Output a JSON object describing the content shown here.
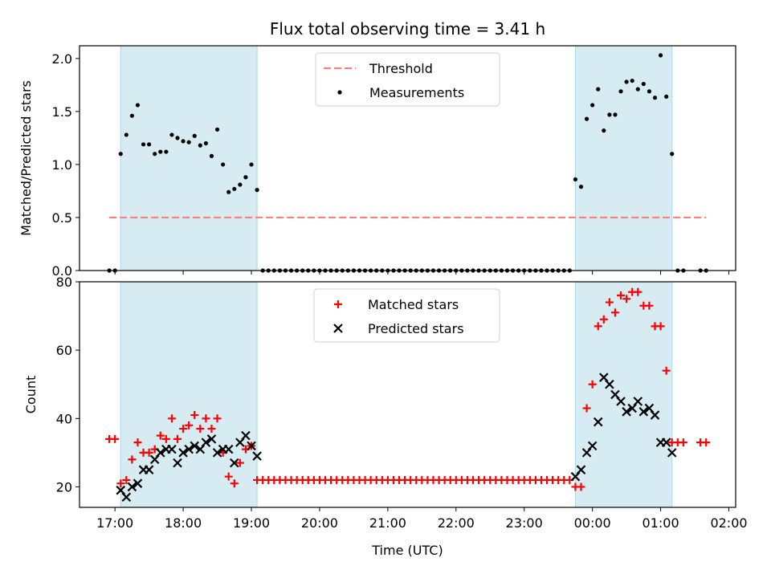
{
  "chart_data": [
    {
      "type": "scatter",
      "title": "Flux total observing time = 3.41 h",
      "ylabel": "Matched/Predicted stars",
      "xlabel": "",
      "ylim": [
        0,
        2.12
      ],
      "yticks": [
        0.0,
        0.5,
        1.0,
        1.5,
        2.0
      ],
      "ytick_labels": [
        "0.0",
        "0.5",
        "1.0",
        "1.5",
        "2.0"
      ],
      "shaded_intervals": [
        [
          "17:05",
          "19:05"
        ],
        [
          "23:45",
          "01:10"
        ]
      ],
      "shade_color": "#add8e6",
      "legend": {
        "placement": "top-center",
        "entries": [
          "Threshold",
          "Measurements"
        ]
      },
      "threshold": {
        "name": "Threshold",
        "value": 0.5,
        "x_range": [
          "16:55",
          "01:40"
        ],
        "color": "#ff7f7f",
        "style": "dashed"
      },
      "series": [
        {
          "name": "Measurements",
          "color": "#000000",
          "marker": "dot",
          "points": [
            [
              "16:55",
              0.0
            ],
            [
              "17:00",
              0.0
            ],
            [
              "17:05",
              1.1
            ],
            [
              "17:10",
              1.28
            ],
            [
              "17:15",
              1.46
            ],
            [
              "17:20",
              1.56
            ],
            [
              "17:25",
              1.19
            ],
            [
              "17:30",
              1.19
            ],
            [
              "17:35",
              1.1
            ],
            [
              "17:40",
              1.12
            ],
            [
              "17:45",
              1.12
            ],
            [
              "17:50",
              1.28
            ],
            [
              "17:55",
              1.25
            ],
            [
              "18:00",
              1.22
            ],
            [
              "18:05",
              1.21
            ],
            [
              "18:10",
              1.27
            ],
            [
              "18:15",
              1.18
            ],
            [
              "18:20",
              1.2
            ],
            [
              "18:25",
              1.08
            ],
            [
              "18:30",
              1.33
            ],
            [
              "18:35",
              1.0
            ],
            [
              "18:40",
              0.74
            ],
            [
              "18:45",
              0.77
            ],
            [
              "18:50",
              0.81
            ],
            [
              "18:55",
              0.88
            ],
            [
              "19:00",
              1.0
            ],
            [
              "19:05",
              0.76
            ],
            [
              "19:10",
              0.0
            ],
            [
              "19:15",
              0.0
            ],
            [
              "19:20",
              0.0
            ],
            [
              "19:25",
              0.0
            ],
            [
              "19:30",
              0.0
            ],
            [
              "19:35",
              0.0
            ],
            [
              "19:40",
              0.0
            ],
            [
              "19:45",
              0.0
            ],
            [
              "19:50",
              0.0
            ],
            [
              "19:55",
              0.0
            ],
            [
              "20:00",
              0.0
            ],
            [
              "20:05",
              0.0
            ],
            [
              "20:10",
              0.0
            ],
            [
              "20:15",
              0.0
            ],
            [
              "20:20",
              0.0
            ],
            [
              "20:25",
              0.0
            ],
            [
              "20:30",
              0.0
            ],
            [
              "20:35",
              0.0
            ],
            [
              "20:40",
              0.0
            ],
            [
              "20:45",
              0.0
            ],
            [
              "20:50",
              0.0
            ],
            [
              "20:55",
              0.0
            ],
            [
              "21:00",
              0.0
            ],
            [
              "21:05",
              0.0
            ],
            [
              "21:10",
              0.0
            ],
            [
              "21:15",
              0.0
            ],
            [
              "21:20",
              0.0
            ],
            [
              "21:25",
              0.0
            ],
            [
              "21:30",
              0.0
            ],
            [
              "21:35",
              0.0
            ],
            [
              "21:40",
              0.0
            ],
            [
              "21:45",
              0.0
            ],
            [
              "21:50",
              0.0
            ],
            [
              "21:55",
              0.0
            ],
            [
              "22:00",
              0.0
            ],
            [
              "22:05",
              0.0
            ],
            [
              "22:10",
              0.0
            ],
            [
              "22:15",
              0.0
            ],
            [
              "22:20",
              0.0
            ],
            [
              "22:25",
              0.0
            ],
            [
              "22:30",
              0.0
            ],
            [
              "22:35",
              0.0
            ],
            [
              "22:40",
              0.0
            ],
            [
              "22:45",
              0.0
            ],
            [
              "22:50",
              0.0
            ],
            [
              "22:55",
              0.0
            ],
            [
              "23:00",
              0.0
            ],
            [
              "23:05",
              0.0
            ],
            [
              "23:10",
              0.0
            ],
            [
              "23:15",
              0.0
            ],
            [
              "23:20",
              0.0
            ],
            [
              "23:25",
              0.0
            ],
            [
              "23:30",
              0.0
            ],
            [
              "23:35",
              0.0
            ],
            [
              "23:40",
              0.0
            ],
            [
              "23:45",
              0.86
            ],
            [
              "23:50",
              0.79
            ],
            [
              "23:55",
              1.43
            ],
            [
              "00:00",
              1.56
            ],
            [
              "00:05",
              1.71
            ],
            [
              "00:10",
              1.32
            ],
            [
              "00:15",
              1.47
            ],
            [
              "00:20",
              1.47
            ],
            [
              "00:25",
              1.69
            ],
            [
              "00:30",
              1.78
            ],
            [
              "00:35",
              1.79
            ],
            [
              "00:40",
              1.71
            ],
            [
              "00:45",
              1.76
            ],
            [
              "00:50",
              1.69
            ],
            [
              "00:55",
              1.63
            ],
            [
              "01:00",
              2.03
            ],
            [
              "01:05",
              1.64
            ],
            [
              "01:10",
              1.1
            ],
            [
              "01:15",
              0.0
            ],
            [
              "01:20",
              0.0
            ],
            [
              "01:35",
              0.0
            ],
            [
              "01:40",
              0.0
            ]
          ]
        }
      ]
    },
    {
      "type": "scatter",
      "title": "",
      "ylabel": "Count",
      "xlabel": "Time (UTC)",
      "ylim": [
        14,
        80
      ],
      "yticks": [
        20,
        40,
        60,
        80
      ],
      "ytick_labels": [
        "20",
        "40",
        "60",
        "80"
      ],
      "x_tick_labels": [
        "17:00",
        "18:00",
        "19:00",
        "20:00",
        "21:00",
        "22:00",
        "23:00",
        "00:00",
        "01:00",
        "02:00"
      ],
      "shaded_intervals": [
        [
          "17:05",
          "19:05"
        ],
        [
          "23:45",
          "01:10"
        ]
      ],
      "shade_color": "#add8e6",
      "legend": {
        "placement": "top-center",
        "entries": [
          "Matched stars",
          "Predicted stars"
        ]
      },
      "series": [
        {
          "name": "Matched stars",
          "color": "#ff0000",
          "marker": "plus",
          "points": [
            [
              "16:55",
              34
            ],
            [
              "17:00",
              34
            ],
            [
              "17:05",
              21
            ],
            [
              "17:10",
              22
            ],
            [
              "17:15",
              28
            ],
            [
              "17:20",
              33
            ],
            [
              "17:25",
              30
            ],
            [
              "17:30",
              30
            ],
            [
              "17:35",
              31
            ],
            [
              "17:40",
              35
            ],
            [
              "17:45",
              34
            ],
            [
              "17:50",
              40
            ],
            [
              "17:55",
              34
            ],
            [
              "18:00",
              37
            ],
            [
              "18:05",
              38
            ],
            [
              "18:10",
              41
            ],
            [
              "18:15",
              37
            ],
            [
              "18:20",
              40
            ],
            [
              "18:25",
              37
            ],
            [
              "18:30",
              40
            ],
            [
              "18:35",
              30
            ],
            [
              "18:40",
              23
            ],
            [
              "18:45",
              21
            ],
            [
              "18:50",
              27
            ],
            [
              "18:55",
              31
            ],
            [
              "19:00",
              32
            ],
            [
              "19:05",
              22
            ],
            [
              "19:10",
              22
            ],
            [
              "19:15",
              22
            ],
            [
              "19:20",
              22
            ],
            [
              "19:25",
              22
            ],
            [
              "19:30",
              22
            ],
            [
              "19:35",
              22
            ],
            [
              "19:40",
              22
            ],
            [
              "19:45",
              22
            ],
            [
              "19:50",
              22
            ],
            [
              "19:55",
              22
            ],
            [
              "20:00",
              22
            ],
            [
              "20:05",
              22
            ],
            [
              "20:10",
              22
            ],
            [
              "20:15",
              22
            ],
            [
              "20:20",
              22
            ],
            [
              "20:25",
              22
            ],
            [
              "20:30",
              22
            ],
            [
              "20:35",
              22
            ],
            [
              "20:40",
              22
            ],
            [
              "20:45",
              22
            ],
            [
              "20:50",
              22
            ],
            [
              "20:55",
              22
            ],
            [
              "21:00",
              22
            ],
            [
              "21:05",
              22
            ],
            [
              "21:10",
              22
            ],
            [
              "21:15",
              22
            ],
            [
              "21:20",
              22
            ],
            [
              "21:25",
              22
            ],
            [
              "21:30",
              22
            ],
            [
              "21:35",
              22
            ],
            [
              "21:40",
              22
            ],
            [
              "21:45",
              22
            ],
            [
              "21:50",
              22
            ],
            [
              "21:55",
              22
            ],
            [
              "22:00",
              22
            ],
            [
              "22:05",
              22
            ],
            [
              "22:10",
              22
            ],
            [
              "22:15",
              22
            ],
            [
              "22:20",
              22
            ],
            [
              "22:25",
              22
            ],
            [
              "22:30",
              22
            ],
            [
              "22:35",
              22
            ],
            [
              "22:40",
              22
            ],
            [
              "22:45",
              22
            ],
            [
              "22:50",
              22
            ],
            [
              "22:55",
              22
            ],
            [
              "23:00",
              22
            ],
            [
              "23:05",
              22
            ],
            [
              "23:10",
              22
            ],
            [
              "23:15",
              22
            ],
            [
              "23:20",
              22
            ],
            [
              "23:25",
              22
            ],
            [
              "23:30",
              22
            ],
            [
              "23:35",
              22
            ],
            [
              "23:40",
              22
            ],
            [
              "23:45",
              20
            ],
            [
              "23:50",
              20
            ],
            [
              "23:55",
              43
            ],
            [
              "00:00",
              50
            ],
            [
              "00:05",
              67
            ],
            [
              "00:10",
              69
            ],
            [
              "00:15",
              74
            ],
            [
              "00:20",
              71
            ],
            [
              "00:25",
              76
            ],
            [
              "00:30",
              75
            ],
            [
              "00:35",
              77
            ],
            [
              "00:40",
              77
            ],
            [
              "00:45",
              73
            ],
            [
              "00:50",
              73
            ],
            [
              "00:55",
              67
            ],
            [
              "01:00",
              67
            ],
            [
              "01:05",
              54
            ],
            [
              "01:10",
              33
            ],
            [
              "01:15",
              33
            ],
            [
              "01:20",
              33
            ],
            [
              "01:35",
              33
            ],
            [
              "01:40",
              33
            ]
          ]
        },
        {
          "name": "Predicted stars",
          "color": "#000000",
          "marker": "x",
          "points": [
            [
              "17:05",
              19
            ],
            [
              "17:10",
              17
            ],
            [
              "17:15",
              20
            ],
            [
              "17:20",
              21
            ],
            [
              "17:25",
              25
            ],
            [
              "17:30",
              25
            ],
            [
              "17:35",
              28
            ],
            [
              "17:40",
              30
            ],
            [
              "17:45",
              31
            ],
            [
              "17:50",
              31
            ],
            [
              "17:55",
              27
            ],
            [
              "18:00",
              30
            ],
            [
              "18:05",
              31
            ],
            [
              "18:10",
              32
            ],
            [
              "18:15",
              31
            ],
            [
              "18:20",
              33
            ],
            [
              "18:25",
              34
            ],
            [
              "18:30",
              30
            ],
            [
              "18:35",
              31
            ],
            [
              "18:40",
              31
            ],
            [
              "18:45",
              27
            ],
            [
              "18:50",
              33
            ],
            [
              "18:55",
              35
            ],
            [
              "19:00",
              32
            ],
            [
              "19:05",
              29
            ],
            [
              "23:45",
              23
            ],
            [
              "23:50",
              25
            ],
            [
              "23:55",
              30
            ],
            [
              "00:00",
              32
            ],
            [
              "00:05",
              39
            ],
            [
              "00:10",
              52
            ],
            [
              "00:15",
              50
            ],
            [
              "00:20",
              47
            ],
            [
              "00:25",
              45
            ],
            [
              "00:30",
              42
            ],
            [
              "00:35",
              43
            ],
            [
              "00:40",
              45
            ],
            [
              "00:45",
              42
            ],
            [
              "00:50",
              43
            ],
            [
              "00:55",
              41
            ],
            [
              "01:00",
              33
            ],
            [
              "01:05",
              33
            ],
            [
              "01:10",
              30
            ]
          ]
        }
      ]
    }
  ]
}
